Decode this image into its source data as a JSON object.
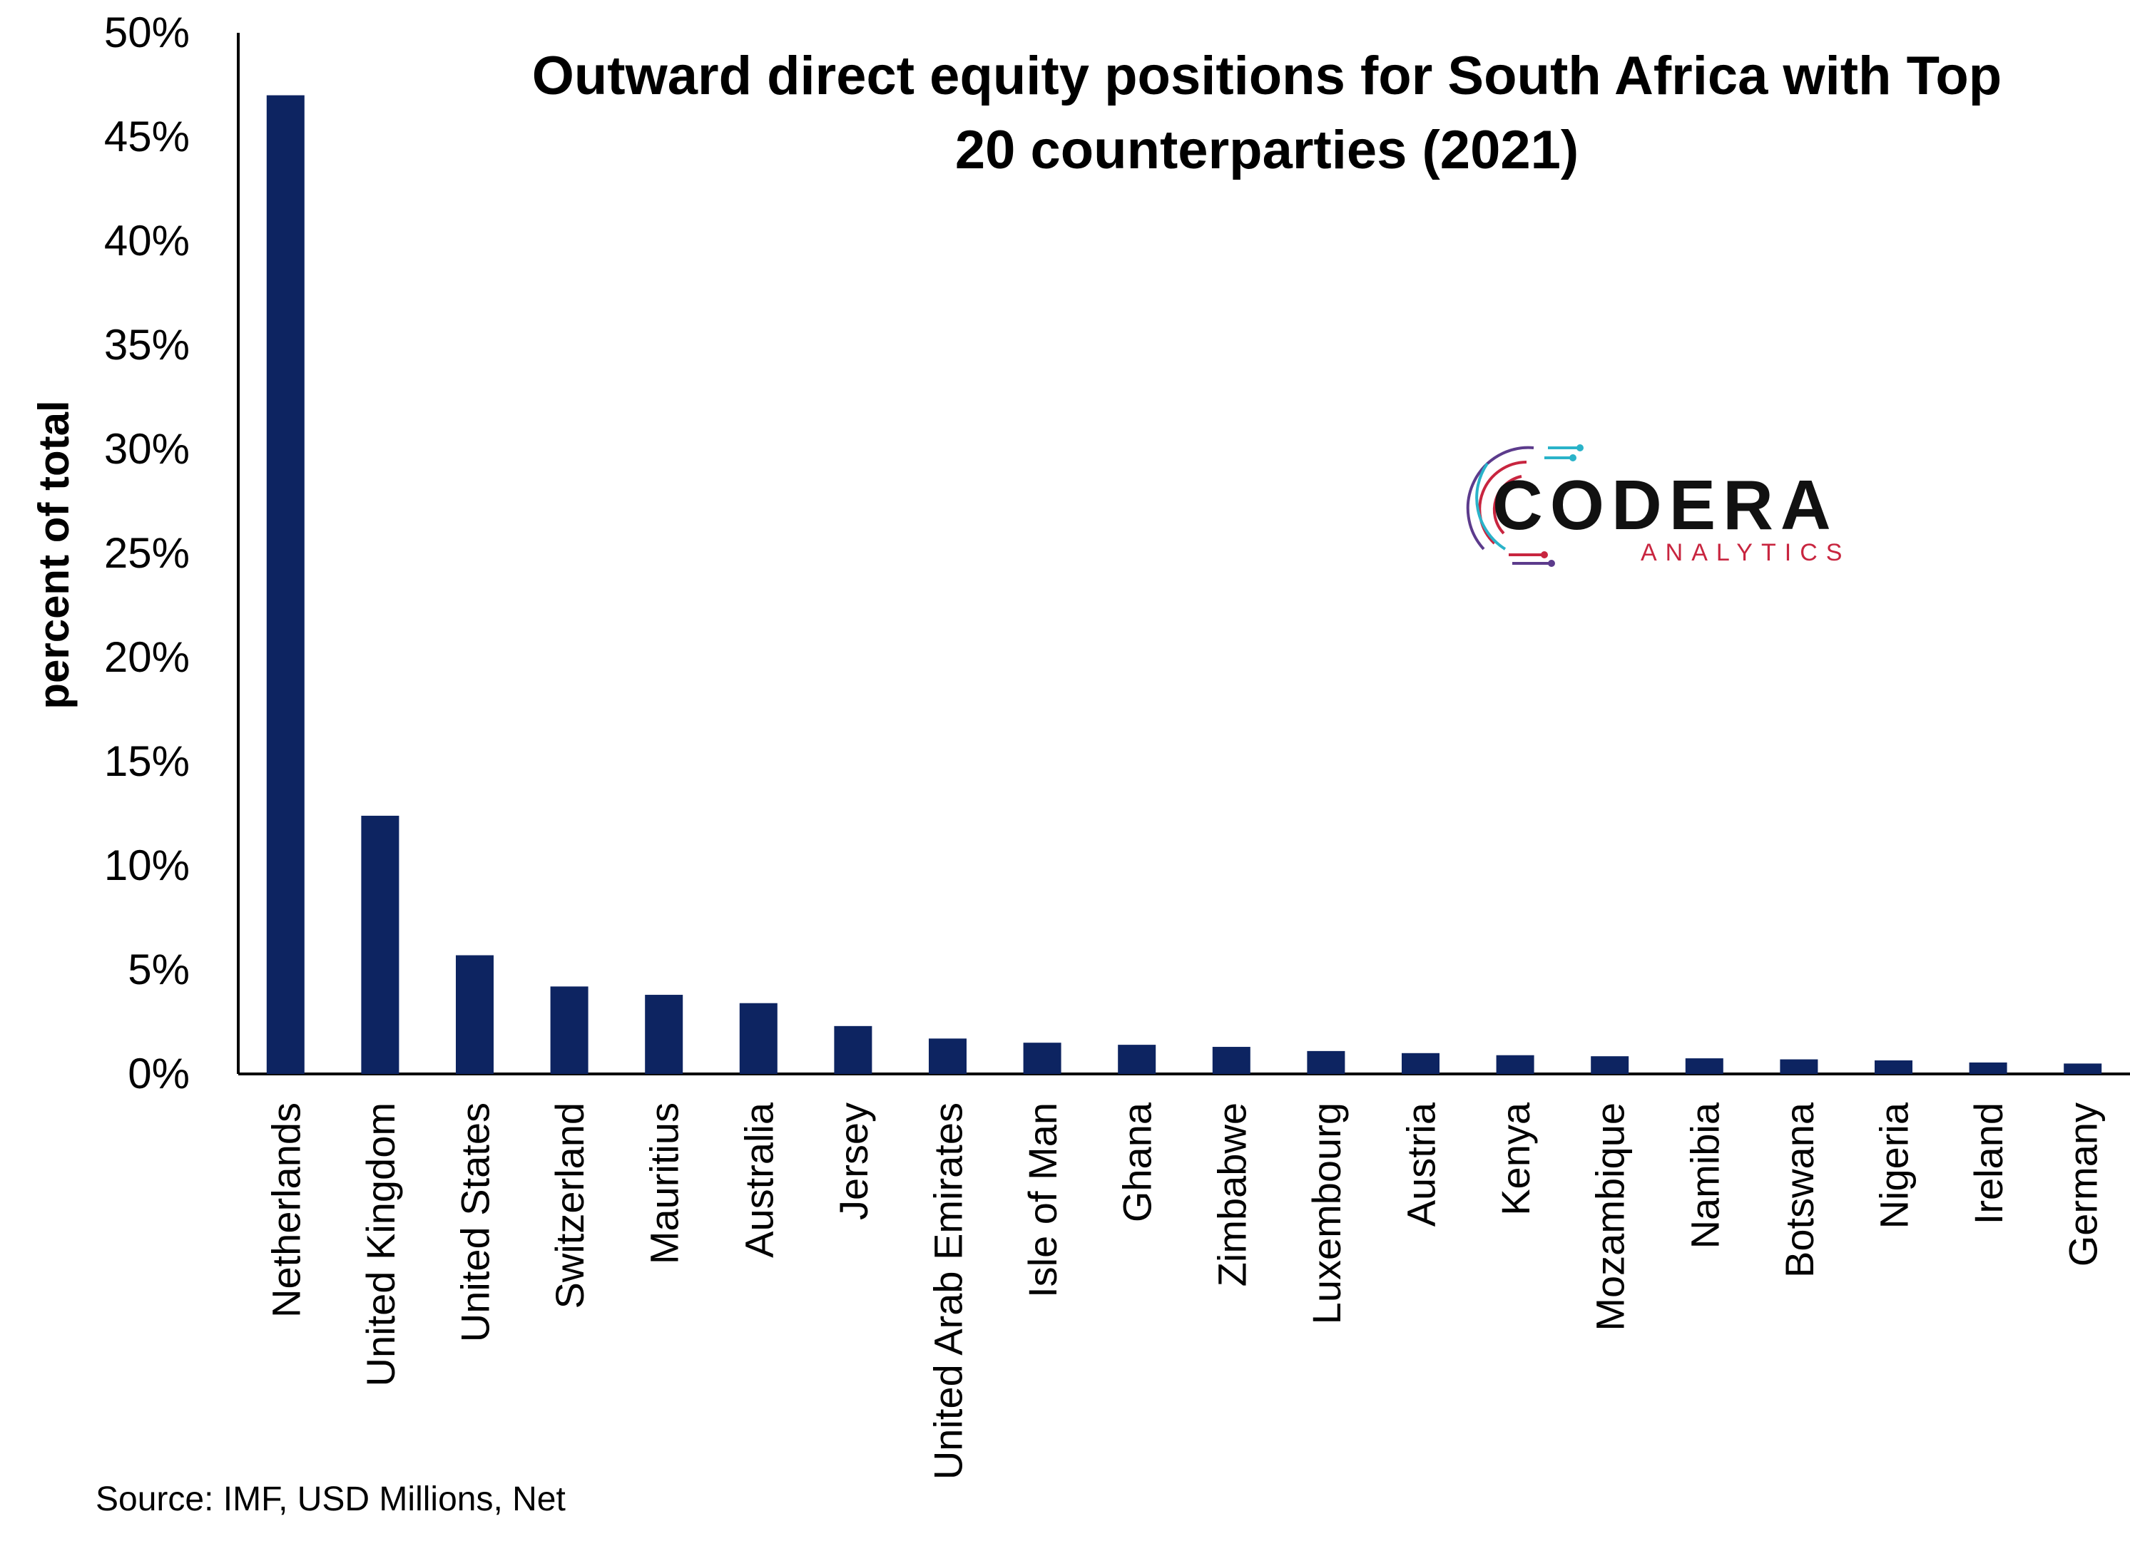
{
  "chart_data": {
    "type": "bar",
    "title_lines": [
      "Outward direct equity positions for South Africa with Top",
      "20 counterparties (2021)"
    ],
    "ylabel": "percent of total",
    "xlabel": "",
    "ylim": [
      0,
      50
    ],
    "yticks": [
      "0%",
      "5%",
      "10%",
      "15%",
      "20%",
      "25%",
      "30%",
      "35%",
      "40%",
      "45%",
      "50%"
    ],
    "ytick_values": [
      0,
      5,
      10,
      15,
      20,
      25,
      30,
      35,
      40,
      45,
      50
    ],
    "categories": [
      "Netherlands",
      "United Kingdom",
      "United States",
      "Switzerland",
      "Mauritius",
      "Australia",
      "Jersey",
      "United Arab Emirates",
      "Isle of Man",
      "Ghana",
      "Zimbabwe",
      "Luxembourg",
      "Austria",
      "Kenya",
      "Mozambique",
      "Namibia",
      "Botswana",
      "Nigeria",
      "Ireland",
      "Germany"
    ],
    "values": [
      47.0,
      12.4,
      5.7,
      4.2,
      3.8,
      3.4,
      2.3,
      1.7,
      1.5,
      1.4,
      1.3,
      1.1,
      1.0,
      0.9,
      0.85,
      0.75,
      0.7,
      0.65,
      0.55,
      0.5
    ],
    "bar_color": "#0d2461",
    "grid": false,
    "legend": "none"
  },
  "source_text": "Source: IMF, USD Millions, Net",
  "logo": {
    "name": "CODERA",
    "subtitle": "ANALYTICS",
    "icon": "circular-circuit-icon",
    "colors": {
      "red": "#c8253f",
      "teal": "#2ab3c9",
      "purple": "#5c3b8c"
    }
  }
}
